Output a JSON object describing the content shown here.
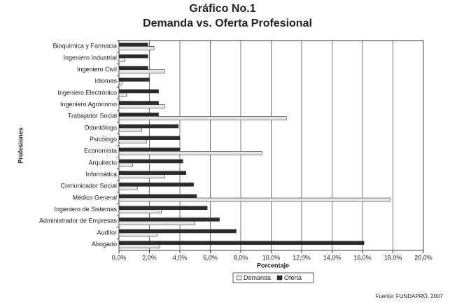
{
  "chart_data": {
    "type": "barh",
    "title": "Gráfico No.1",
    "subtitle": "Demanda vs. Oferta Profesional",
    "x_label": "Porcentaje",
    "y_label": "Profesiones",
    "source": "Fuente: FUNDAPRÓ. 2007",
    "categories": [
      "Bioquímica y Farmacia",
      "Ingeniero Industrial",
      "Ingeniero Civil",
      "Idiomas",
      "Ingeniero Electrónico",
      "Ingeniero Agrónomo",
      "Trabajador Social",
      "Odontólogo",
      "Psicólogo",
      "Economista",
      "Arquitecto",
      "Informática",
      "Comunicador Social",
      "Médico General",
      "Ingeniero de Sistemas",
      "Administrador de Empresas",
      "Auditor",
      "Abogado"
    ],
    "series": [
      {
        "name": "Demanda",
        "color": "#e6e6e6",
        "values": [
          2.3,
          0.4,
          3.0,
          0.2,
          0.5,
          3.0,
          11.0,
          1.5,
          1.8,
          9.4,
          0.9,
          3.0,
          1.2,
          17.8,
          2.8,
          5.0,
          2.5,
          2.7
        ]
      },
      {
        "name": "Oferta",
        "color": "#2b2b2b",
        "values": [
          1.9,
          1.9,
          1.9,
          2.0,
          2.6,
          2.6,
          2.6,
          3.9,
          4.0,
          4.0,
          4.2,
          4.4,
          4.9,
          5.1,
          5.8,
          6.6,
          7.7,
          16.1
        ]
      }
    ],
    "xlim": [
      0,
      20
    ],
    "xticks": [
      {
        "value": 0,
        "label": "0,0%"
      },
      {
        "value": 2,
        "label": "2,0%"
      },
      {
        "value": 4,
        "label": "4,0%"
      },
      {
        "value": 6,
        "label": "6,0%"
      },
      {
        "value": 8,
        "label": "8,0%"
      },
      {
        "value": 10,
        "label": "10,0%"
      },
      {
        "value": 12,
        "label": "12,0%"
      },
      {
        "value": 14,
        "label": "14,0%"
      },
      {
        "value": 16,
        "label": "16,0%"
      },
      {
        "value": 18,
        "label": "18,0%"
      },
      {
        "value": 20,
        "label": "20,0%"
      }
    ],
    "grid": true,
    "legend": "bottom"
  }
}
